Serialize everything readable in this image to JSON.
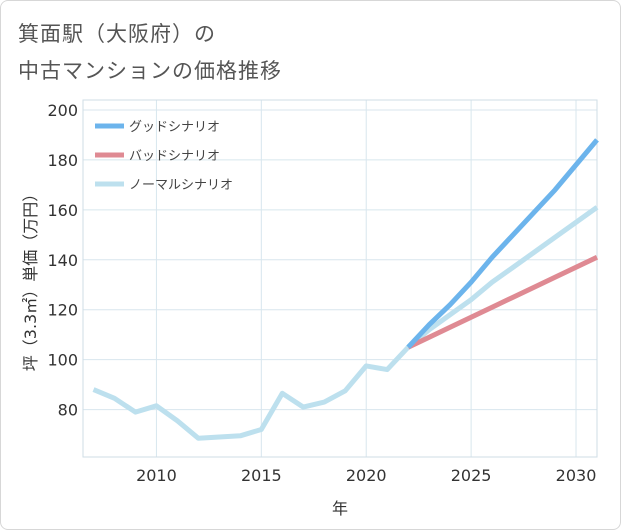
{
  "title_lines": [
    "箕面駅（大阪府）の",
    "中古マンションの価格推移"
  ],
  "chart_data": {
    "type": "line",
    "xlabel": "年",
    "ylabel": "坪（3.3㎡）単価（万円）",
    "xlim": [
      2006.5,
      2031
    ],
    "ylim": [
      61,
      204
    ],
    "xticks": [
      2010,
      2015,
      2020,
      2025,
      2030
    ],
    "yticks": [
      80,
      100,
      120,
      140,
      160,
      180,
      200
    ],
    "grid": true,
    "legend_position": "top-left",
    "series": [
      {
        "name": "グッドシナリオ",
        "color": "#6cb4ec",
        "x": [
          2022,
          2023,
          2024,
          2025,
          2026,
          2027,
          2028,
          2029,
          2030,
          2031
        ],
        "y": [
          105,
          114,
          122,
          131,
          141,
          150,
          159,
          168,
          178,
          188
        ]
      },
      {
        "name": "バッドシナリオ",
        "color": "#df8a93",
        "x": [
          2022,
          2023,
          2024,
          2025,
          2026,
          2027,
          2028,
          2029,
          2030,
          2031
        ],
        "y": [
          105,
          109,
          113,
          117,
          121,
          125,
          129,
          133,
          137,
          141
        ]
      },
      {
        "name": "ノーマルシナリオ",
        "color": "#bde0ee",
        "x": [
          2007,
          2008,
          2009,
          2010,
          2011,
          2012,
          2013,
          2014,
          2015,
          2016,
          2017,
          2018,
          2019,
          2020,
          2021,
          2022,
          2023,
          2024,
          2025,
          2026,
          2027,
          2028,
          2029,
          2030,
          2031
        ],
        "y": [
          88,
          84.5,
          79,
          81.5,
          75.5,
          68.5,
          69,
          69.5,
          72,
          86.5,
          81,
          83,
          87.5,
          97.5,
          96,
          105,
          112,
          118,
          124,
          131,
          137,
          143,
          149,
          155,
          161
        ]
      }
    ]
  }
}
